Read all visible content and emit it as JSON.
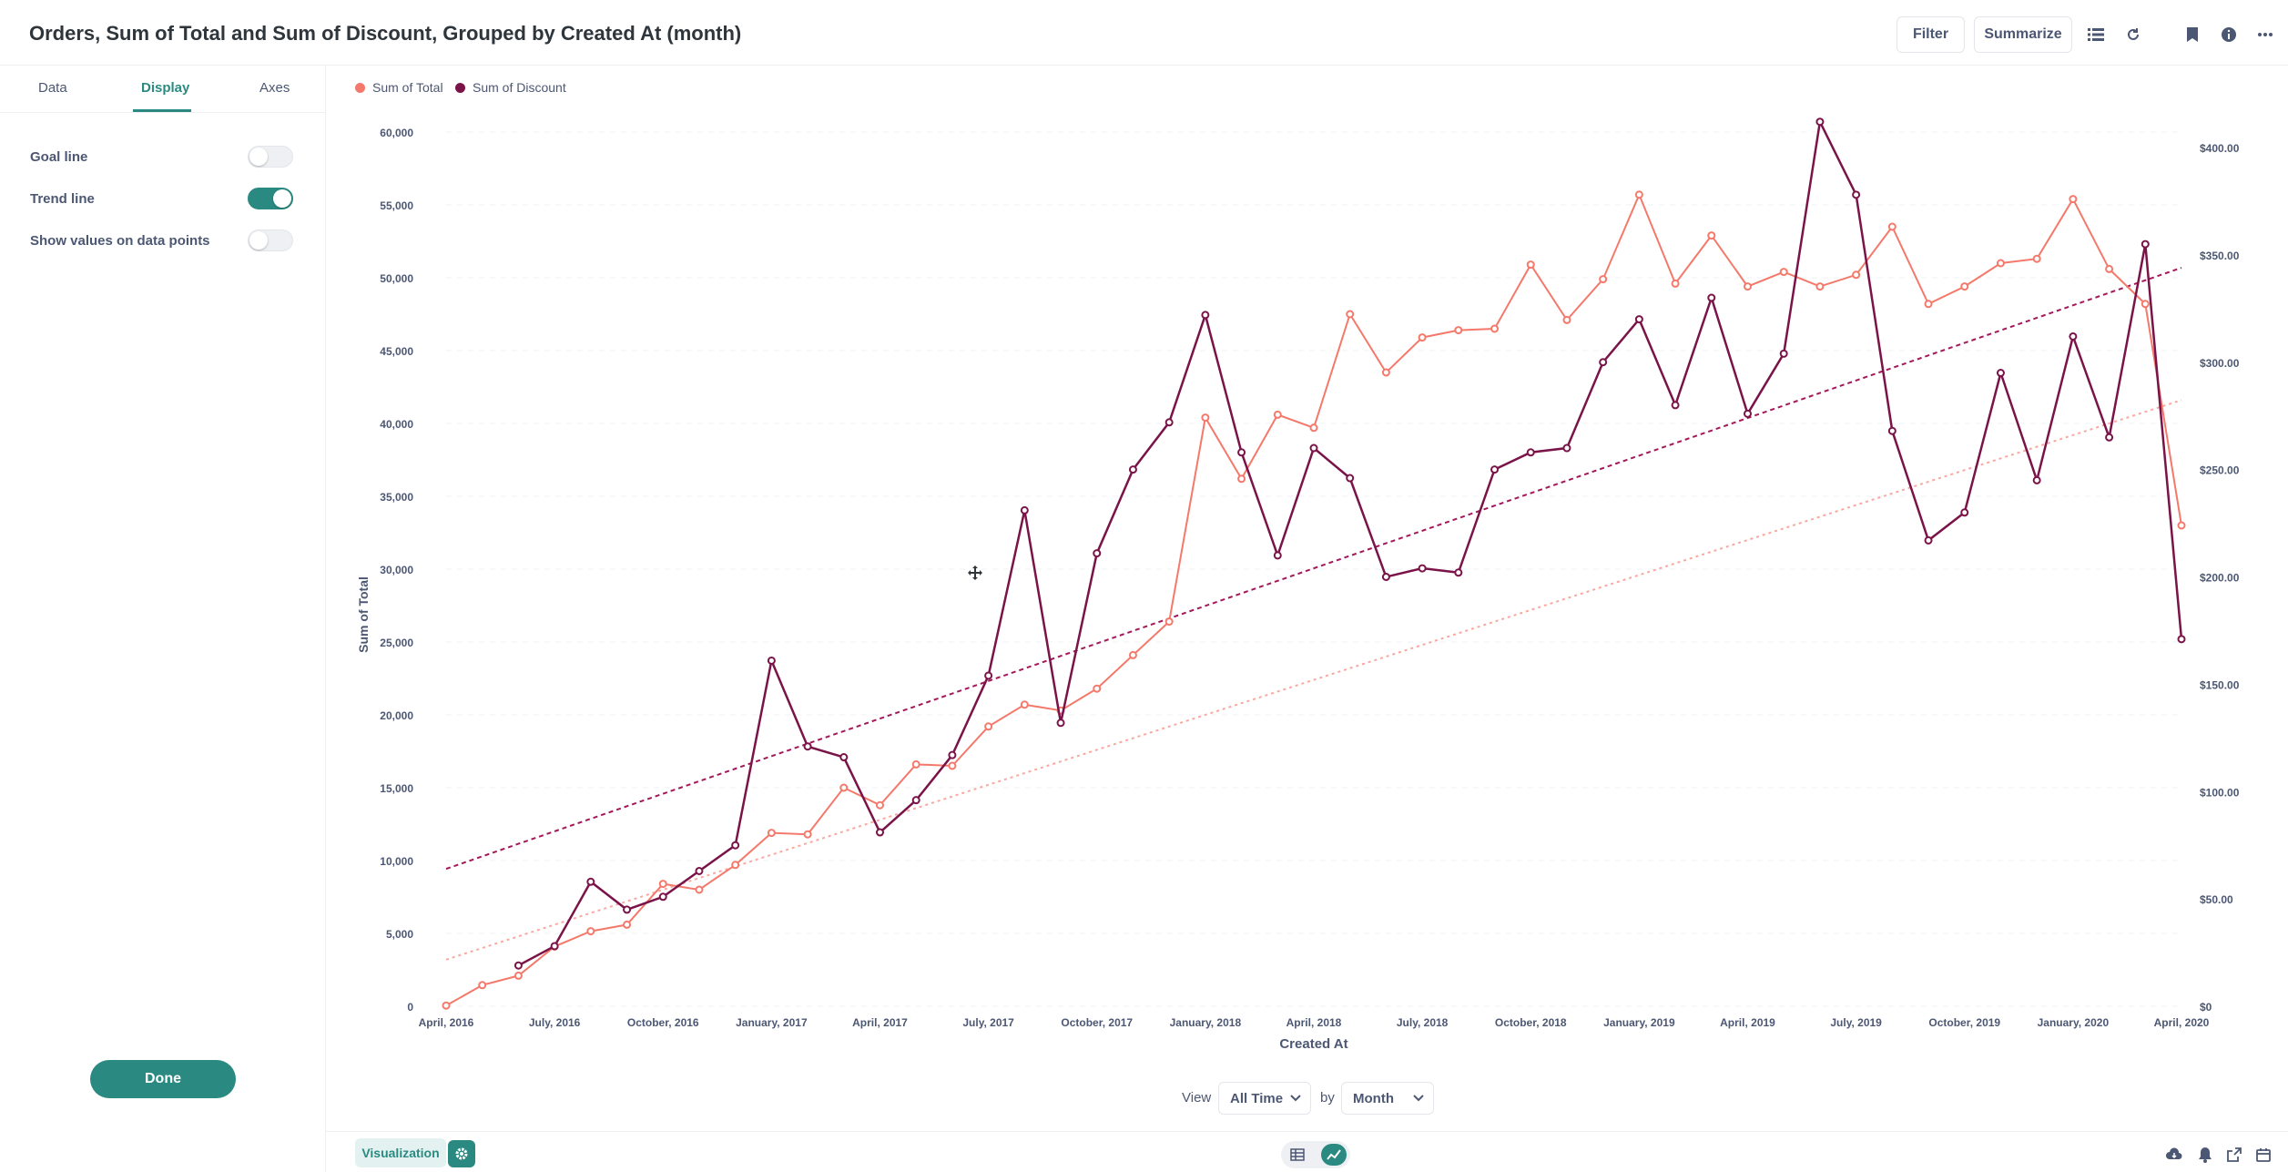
{
  "header": {
    "title": "Orders, Sum of Total and Sum of Discount, Grouped by Created At (month)",
    "filter_label": "Filter",
    "summarize_label": "Summarize"
  },
  "sidebar": {
    "tabs": [
      {
        "label": "Data"
      },
      {
        "label": "Display"
      },
      {
        "label": "Axes"
      }
    ],
    "settings": [
      {
        "label": "Goal line",
        "enabled": false
      },
      {
        "label": "Trend line",
        "enabled": true
      },
      {
        "label": "Show values on data points",
        "enabled": false
      }
    ],
    "done_label": "Done"
  },
  "view_bar": {
    "view_label": "View",
    "range_value": "All Time",
    "by_label": "by",
    "granularity_value": "Month"
  },
  "footer": {
    "visualization_label": "Visualization"
  },
  "colors": {
    "accent": "#2a8a82",
    "total": "#f4796b",
    "discount": "#7a1448",
    "total_trend": "#f9a8a0",
    "discount_trend": "#a3185a"
  },
  "chart_data": {
    "type": "line",
    "xlabel": "Created At",
    "ylabel_left": "Sum of Total",
    "ylabel_right": "Sum of Discount",
    "ylim_left": [
      0,
      60000
    ],
    "ylim_right": [
      0,
      400
    ],
    "left_ticks": [
      "0",
      "5,000",
      "10,000",
      "15,000",
      "20,000",
      "25,000",
      "30,000",
      "35,000",
      "40,000",
      "45,000",
      "50,000",
      "55,000",
      "60,000"
    ],
    "right_ticks": [
      "$0",
      "$50.00",
      "$100.00",
      "$150.00",
      "$200.00",
      "$250.00",
      "$300.00",
      "$350.00",
      "$400.00"
    ],
    "x_tick_labels": [
      {
        "month": 0,
        "label": "April, 2016"
      },
      {
        "month": 3,
        "label": "July, 2016"
      },
      {
        "month": 6,
        "label": "October, 2016"
      },
      {
        "month": 9,
        "label": "January, 2017"
      },
      {
        "month": 12,
        "label": "April, 2017"
      },
      {
        "month": 15,
        "label": "July, 2017"
      },
      {
        "month": 18,
        "label": "October, 2017"
      },
      {
        "month": 21,
        "label": "January, 2018"
      },
      {
        "month": 24,
        "label": "April, 2018"
      },
      {
        "month": 27,
        "label": "July, 2018"
      },
      {
        "month": 30,
        "label": "October, 2018"
      },
      {
        "month": 33,
        "label": "January, 2019"
      },
      {
        "month": 36,
        "label": "April, 2019"
      },
      {
        "month": 39,
        "label": "July, 2019"
      },
      {
        "month": 42,
        "label": "October, 2019"
      },
      {
        "month": 45,
        "label": "January, 2020"
      },
      {
        "month": 48,
        "label": "April, 2020"
      }
    ],
    "series": [
      {
        "name": "Sum of Total",
        "axis": "left",
        "color": "#f4796b",
        "start_month": 0,
        "values": [
          50,
          1450,
          2100,
          4100,
          5150,
          5600,
          8400,
          8000,
          9700,
          11900,
          11800,
          15000,
          13800,
          16600,
          16500,
          19200,
          20700,
          20300,
          21800,
          24100,
          26400,
          40400,
          36200,
          40600,
          39700,
          47500,
          43500,
          45900,
          46400,
          46500,
          50900,
          47100,
          49900,
          55700,
          49600,
          52900,
          49400,
          50400,
          49400,
          50200,
          53500,
          48200,
          49400,
          51000,
          51300,
          55400,
          50600,
          48200,
          33000
        ],
        "trend": [
          3200,
          41600
        ]
      },
      {
        "name": "Sum of Discount",
        "axis": "right",
        "color": "#7a1448",
        "start_month": 2,
        "values": [
          19,
          28,
          58,
          45,
          51,
          63,
          75,
          161,
          121,
          116,
          81,
          96,
          117,
          154,
          231,
          132,
          211,
          250,
          272,
          322,
          258,
          210,
          260,
          246,
          200,
          204,
          202,
          250,
          258,
          260,
          300,
          320,
          280,
          330,
          276,
          304,
          412,
          378,
          268,
          217,
          230,
          295,
          245,
          312,
          265,
          355,
          171
        ],
        "trend": [
          64,
          344
        ]
      }
    ],
    "grid": true,
    "legend_position": "top-left"
  }
}
